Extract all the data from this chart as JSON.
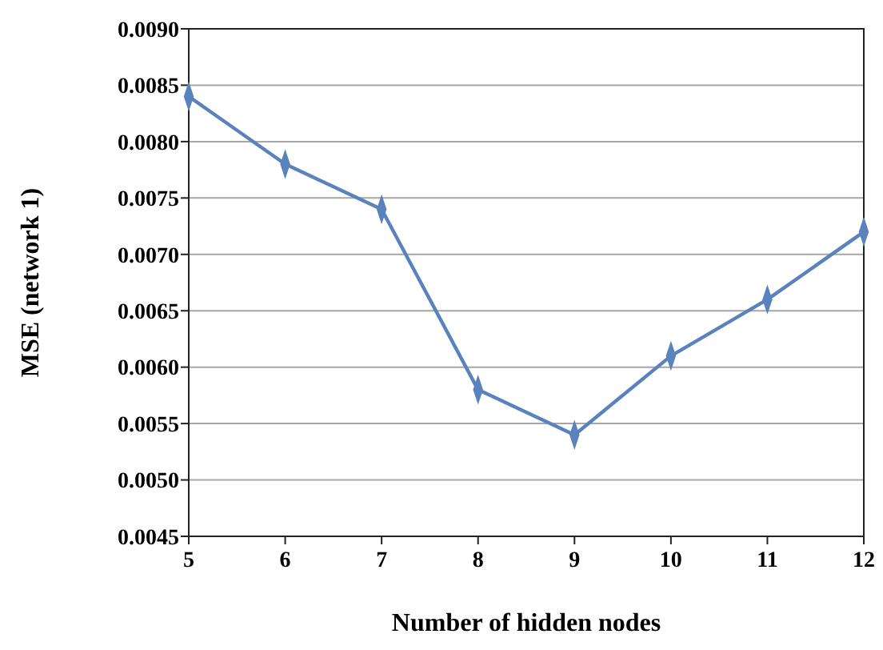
{
  "chart_data": {
    "type": "line",
    "xlabel": "Number of hidden nodes",
    "ylabel": "MSE (network 1)",
    "x": [
      5,
      6,
      7,
      8,
      9,
      10,
      11,
      12
    ],
    "series": [
      {
        "color": "#5a82bd",
        "values": [
          0.0084,
          0.0078,
          0.0074,
          0.0058,
          0.0054,
          0.0061,
          0.0066,
          0.0072
        ]
      }
    ],
    "xlim": [
      5,
      12
    ],
    "xticks": [
      5,
      6,
      7,
      8,
      9,
      10,
      11,
      12
    ],
    "ylim": [
      0.0045,
      0.009
    ],
    "yticks": [
      {
        "value": 0.0045,
        "label": "0.0045"
      },
      {
        "value": 0.005,
        "label": "0.0050"
      },
      {
        "value": 0.0055,
        "label": "0.0055"
      },
      {
        "value": 0.006,
        "label": "0.0060"
      },
      {
        "value": 0.0065,
        "label": "0.0065"
      },
      {
        "value": 0.007,
        "label": "0.0070"
      },
      {
        "value": 0.0075,
        "label": "0.0075"
      },
      {
        "value": 0.008,
        "label": "0.0080"
      },
      {
        "value": 0.0085,
        "label": "0.0085"
      },
      {
        "value": 0.009,
        "label": "0.0090"
      }
    ],
    "grid": "y",
    "marker": "diamond",
    "line_style": "solid"
  }
}
